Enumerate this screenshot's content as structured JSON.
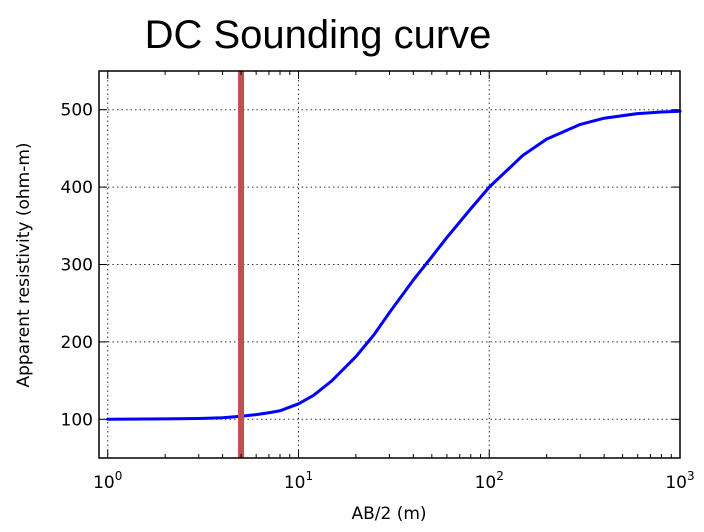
{
  "chart_data": {
    "type": "line",
    "title": "DC Sounding curve",
    "xlabel": "AB/2 (m)",
    "ylabel": "Apparent resistivity (ohm-m)",
    "xscale": "log",
    "xlim": [
      0.9,
      1000
    ],
    "ylim": [
      50,
      550
    ],
    "grid": true,
    "x_ticks": [
      {
        "value": 1,
        "base": "10",
        "exp": "0"
      },
      {
        "value": 10,
        "base": "10",
        "exp": "1"
      },
      {
        "value": 100,
        "base": "10",
        "exp": "2"
      },
      {
        "value": 1000,
        "base": "10",
        "exp": "3"
      }
    ],
    "y_ticks": [
      100,
      200,
      300,
      400,
      500
    ],
    "series": [
      {
        "color": "#0000ff",
        "x": [
          1,
          2,
          3,
          4,
          5,
          6,
          7,
          8,
          10,
          12,
          15,
          20,
          25,
          30,
          40,
          50,
          60,
          80,
          100,
          150,
          200,
          300,
          400,
          600,
          800,
          1000
        ],
        "y": [
          100,
          100.5,
          101,
          102,
          104,
          106,
          108.5,
          111,
          120,
          131,
          150,
          181,
          210,
          238,
          280,
          310,
          335,
          372,
          400,
          441,
          462,
          481,
          489,
          495,
          497,
          498
        ]
      }
    ],
    "vertical_line": {
      "x": 5,
      "color": "#c0504d"
    }
  }
}
